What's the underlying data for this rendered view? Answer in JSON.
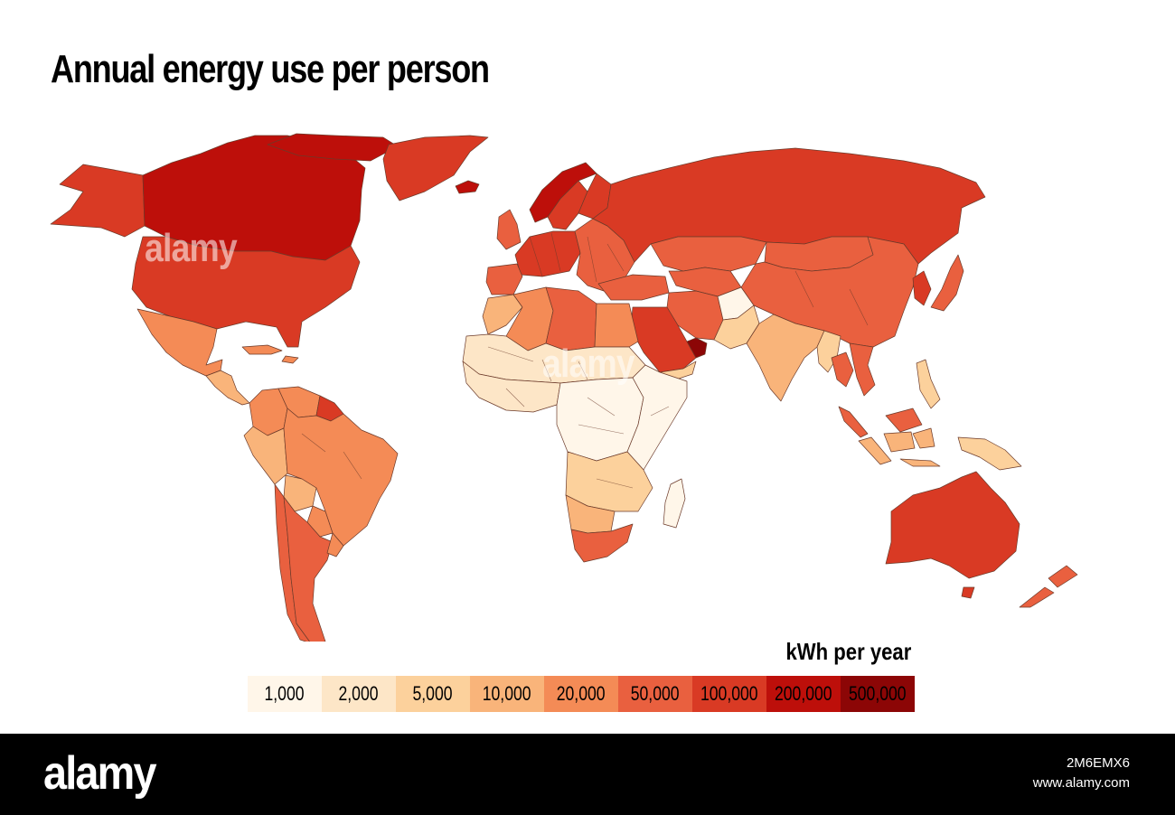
{
  "title": "Annual energy use per person",
  "legend": {
    "unit": "kWh per year",
    "bins": [
      {
        "label": "1,000",
        "color": "#fff6e9"
      },
      {
        "label": "2,000",
        "color": "#fde6c7"
      },
      {
        "label": "5,000",
        "color": "#fcd19c"
      },
      {
        "label": "10,000",
        "color": "#f9b47a"
      },
      {
        "label": "20,000",
        "color": "#f48b56"
      },
      {
        "label": "50,000",
        "color": "#e9603f"
      },
      {
        "label": "100,000",
        "color": "#d93a24"
      },
      {
        "label": "200,000",
        "color": "#bd0f0a"
      },
      {
        "label": "500,000",
        "color": "#8c0606"
      }
    ]
  },
  "regions": [
    {
      "name": "Canada",
      "bin": 7
    },
    {
      "name": "United States",
      "bin": 6
    },
    {
      "name": "Alaska",
      "bin": 6
    },
    {
      "name": "Greenland",
      "bin": 6
    },
    {
      "name": "Iceland",
      "bin": 7
    },
    {
      "name": "Mexico",
      "bin": 4
    },
    {
      "name": "Central America",
      "bin": 3
    },
    {
      "name": "Caribbean",
      "bin": 4
    },
    {
      "name": "Colombia",
      "bin": 4
    },
    {
      "name": "Venezuela",
      "bin": 4
    },
    {
      "name": "Guianas",
      "bin": 6
    },
    {
      "name": "Brazil",
      "bin": 4
    },
    {
      "name": "Peru",
      "bin": 3
    },
    {
      "name": "Bolivia",
      "bin": 3
    },
    {
      "name": "Paraguay",
      "bin": 4
    },
    {
      "name": "Chile",
      "bin": 5
    },
    {
      "name": "Argentina",
      "bin": 5
    },
    {
      "name": "Uruguay",
      "bin": 4
    },
    {
      "name": "Norway",
      "bin": 7
    },
    {
      "name": "Sweden",
      "bin": 6
    },
    {
      "name": "Finland",
      "bin": 6
    },
    {
      "name": "United Kingdom",
      "bin": 5
    },
    {
      "name": "Western Europe",
      "bin": 6
    },
    {
      "name": "Iberia",
      "bin": 5
    },
    {
      "name": "Eastern Europe",
      "bin": 5
    },
    {
      "name": "Russia",
      "bin": 6
    },
    {
      "name": "Kazakhstan",
      "bin": 5
    },
    {
      "name": "Central Asia",
      "bin": 5
    },
    {
      "name": "Mongolia",
      "bin": 5
    },
    {
      "name": "China",
      "bin": 5
    },
    {
      "name": "Korea",
      "bin": 6
    },
    {
      "name": "Japan",
      "bin": 5
    },
    {
      "name": "Turkey",
      "bin": 5
    },
    {
      "name": "Iran",
      "bin": 5
    },
    {
      "name": "Saudi Arabia",
      "bin": 6
    },
    {
      "name": "Gulf States",
      "bin": 8
    },
    {
      "name": "Yemen",
      "bin": 2
    },
    {
      "name": "Afghanistan",
      "bin": 0
    },
    {
      "name": "Pakistan",
      "bin": 2
    },
    {
      "name": "India",
      "bin": 3
    },
    {
      "name": "Myanmar",
      "bin": 2
    },
    {
      "name": "Thailand",
      "bin": 5
    },
    {
      "name": "Vietnam",
      "bin": 5
    },
    {
      "name": "Malaysia",
      "bin": 5
    },
    {
      "name": "Indonesia",
      "bin": 3
    },
    {
      "name": "Philippines",
      "bin": 2
    },
    {
      "name": "Papua New Guinea",
      "bin": 2
    },
    {
      "name": "Australia",
      "bin": 6
    },
    {
      "name": "New Zealand",
      "bin": 5
    },
    {
      "name": "Morocco",
      "bin": 3
    },
    {
      "name": "Algeria",
      "bin": 4
    },
    {
      "name": "Libya",
      "bin": 5
    },
    {
      "name": "Egypt",
      "bin": 4
    },
    {
      "name": "Sahel",
      "bin": 1
    },
    {
      "name": "West Africa",
      "bin": 1
    },
    {
      "name": "Central Africa",
      "bin": 0
    },
    {
      "name": "East Africa",
      "bin": 0
    },
    {
      "name": "Southern Africa",
      "bin": 2
    },
    {
      "name": "Botswana & Namibia",
      "bin": 3
    },
    {
      "name": "South Africa",
      "bin": 5
    },
    {
      "name": "Madagascar",
      "bin": 0
    }
  ],
  "footer": {
    "logo": "alamy",
    "image_id": "2M6EMX6",
    "url": "www.alamy.com"
  }
}
